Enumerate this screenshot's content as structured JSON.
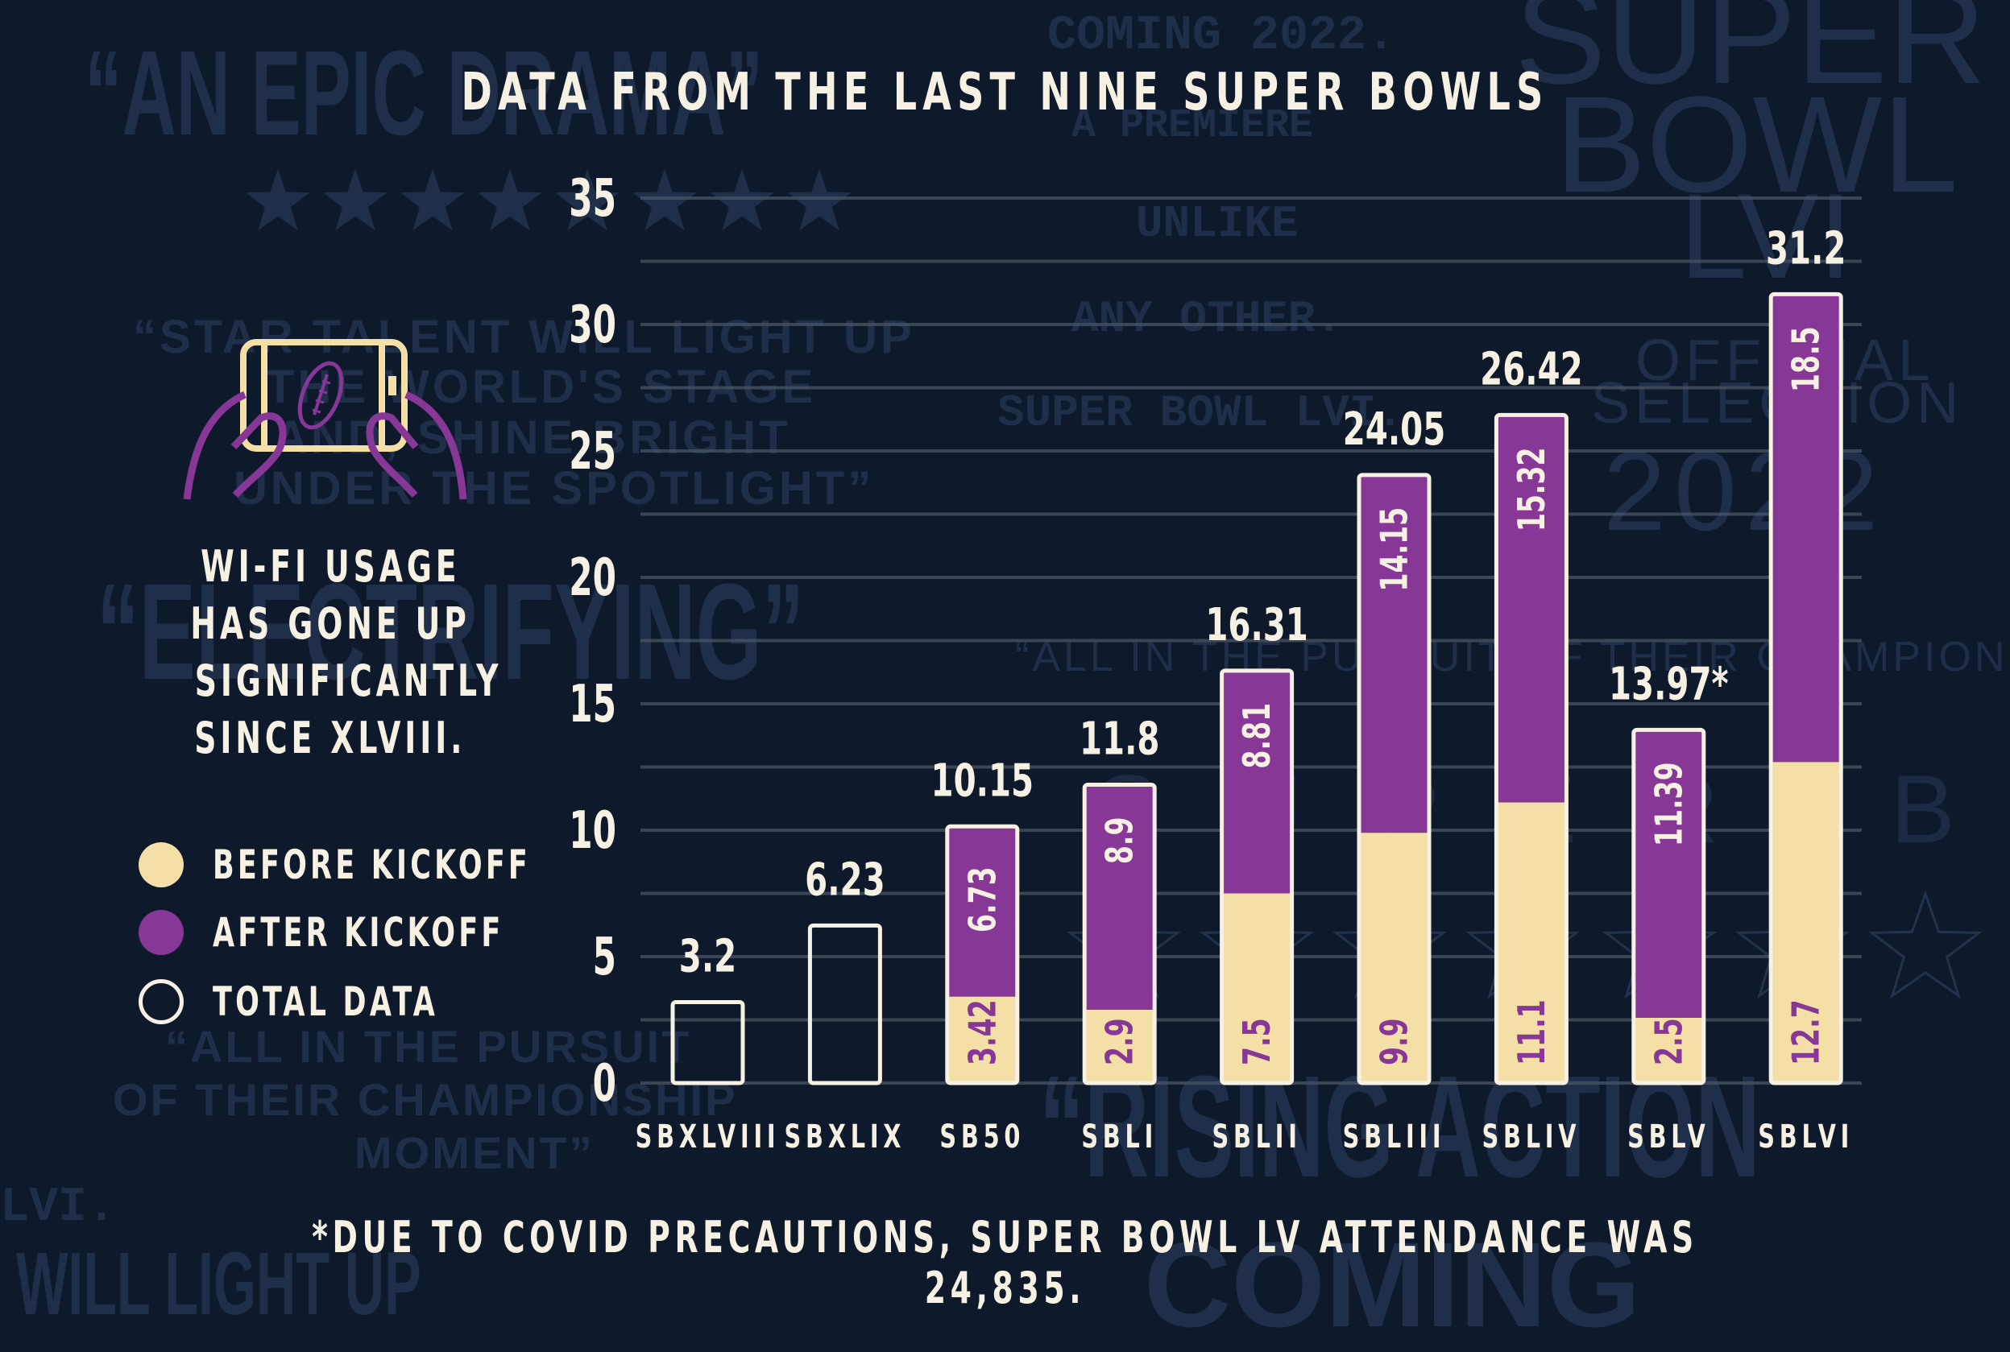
{
  "title": "DATA FROM THE LAST NINE SUPER BOWLS",
  "sidebar": {
    "headline_lines": [
      "WI-FI USAGE",
      "HAS GONE UP",
      "SIGNIFICANTLY",
      "SINCE XLVIII."
    ],
    "icon": "phone-with-football-icon"
  },
  "legend": [
    {
      "label": "BEFORE KICKOFF",
      "color": "#f4dfa6",
      "style": "filled"
    },
    {
      "label": "AFTER KICKOFF",
      "color": "#873897",
      "style": "filled"
    },
    {
      "label": "TOTAL DATA",
      "color": "#f6f1e3",
      "style": "outline"
    }
  ],
  "footnote": "*DUE TO COVID PRECAUTIONS, SUPER BOWL LV ATTENDANCE WAS 24,835.",
  "colors": {
    "background": "#0e1a2b",
    "before": "#f4dfa6",
    "after": "#873897",
    "text": "#f6f1e3",
    "grid": "#4a5566",
    "watermark": "#1f2f49"
  },
  "watermark_texts": [
    "“AN EPIC DRAMA”",
    "COMING 2022.",
    "A PREMIERE",
    "UNLIKE",
    "ANY OTHER.",
    "SUPER BOWL LVI.",
    "SUPER",
    "BOWL",
    "LVI",
    "OFFICIAL",
    "SELECTION",
    "2022",
    "“ELECTRIFYING”",
    "“STAR TALENT WILL LIGHT UP",
    "THE WORLD'S STAGE",
    "AND, SHINE BRIGHT",
    "UNDER THE SPOTLIGHT”",
    "“ALL IN THE PURSUIT OF THEIR CHAMPIONSHIP",
    "“ALL IN THE PURSUIT",
    "OF THEIR CHAMPIONSHIP",
    "MOMENT”",
    "“RISING ACTION",
    "WILL LIGHT UP",
    "COMING",
    "SUPER BOWL LVI",
    "LVI."
  ],
  "chart_data": {
    "type": "bar",
    "stacked": true,
    "title": "DATA FROM THE LAST NINE SUPER BOWLS",
    "xlabel": "",
    "ylabel": "",
    "ylim": [
      0,
      35
    ],
    "yticks": [
      0,
      5,
      10,
      15,
      20,
      25,
      30,
      35
    ],
    "grid": true,
    "grid_step": 2.5,
    "legend_position": "left",
    "categories": [
      "SBXLVIII",
      "SBXLIX",
      "SB50",
      "SBLI",
      "SBLII",
      "SBLIII",
      "SBLIV",
      "SBLV",
      "SBLVI"
    ],
    "series": [
      {
        "name": "BEFORE KICKOFF",
        "values": [
          null,
          null,
          3.42,
          2.9,
          7.5,
          9.9,
          11.1,
          2.58,
          12.7
        ]
      },
      {
        "name": "AFTER KICKOFF",
        "values": [
          null,
          null,
          6.73,
          8.9,
          8.81,
          14.15,
          15.32,
          11.39,
          18.5
        ]
      }
    ],
    "totals": [
      3.2,
      6.23,
      10.15,
      11.8,
      16.31,
      24.05,
      26.42,
      13.97,
      31.2
    ],
    "total_labels": [
      "3.2",
      "6.23",
      "10.15",
      "11.8",
      "16.31",
      "24.05",
      "26.42",
      "13.97*",
      "31.2"
    ],
    "annotations": [
      {
        "category": "SBLV",
        "text": "*",
        "note": "see footnote"
      }
    ]
  }
}
